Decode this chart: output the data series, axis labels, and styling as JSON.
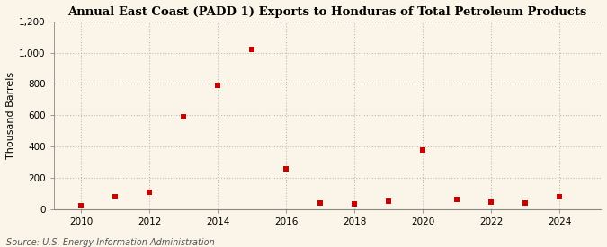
{
  "title": "Annual East Coast (PADD 1) Exports to Honduras of Total Petroleum Products",
  "ylabel": "Thousand Barrels",
  "source": "Source: U.S. Energy Information Administration",
  "years": [
    2010,
    2011,
    2012,
    2013,
    2014,
    2015,
    2016,
    2017,
    2018,
    2019,
    2020,
    2021,
    2022,
    2023,
    2024
  ],
  "values": [
    20,
    75,
    105,
    590,
    790,
    1020,
    255,
    35,
    30,
    50,
    375,
    60,
    45,
    35,
    75
  ],
  "ylim": [
    0,
    1200
  ],
  "yticks": [
    0,
    200,
    400,
    600,
    800,
    1000,
    1200
  ],
  "ytick_labels": [
    "0",
    "200",
    "400",
    "600",
    "800",
    "1,000",
    "1,200"
  ],
  "xticks": [
    2010,
    2012,
    2014,
    2016,
    2018,
    2020,
    2022,
    2024
  ],
  "marker_color": "#cc0000",
  "marker_size": 5,
  "background_color": "#faf5e8",
  "grid_color": "#bbbbbb",
  "title_fontsize": 9.5,
  "label_fontsize": 8,
  "tick_fontsize": 7.5,
  "source_fontsize": 7
}
